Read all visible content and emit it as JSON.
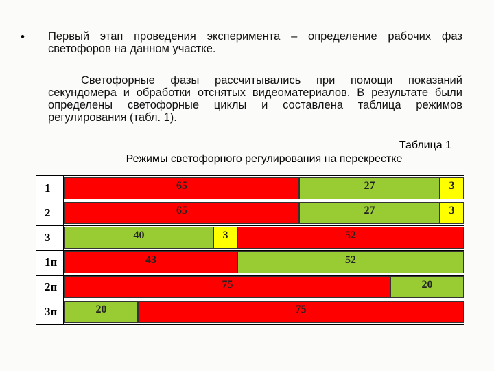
{
  "bullet": {
    "marker": "•",
    "text": "Первый этап проведения эксперимента – определение рабочих фаз светофоров на данном участке."
  },
  "paragraph": "Светофорные фазы рассчитывались при помощи показаний секундомера и обработки отснятых видеоматериалов. В результате были определены светофорные циклы и составлена таблица режимов регулирования (табл. 1).",
  "table": {
    "number": "Таблица 1",
    "title": "Режимы светофорного регулирования на перекрестке",
    "rows": [
      {
        "label": "1",
        "segments": [
          65,
          27,
          3
        ]
      },
      {
        "label": "2",
        "segments": [
          65,
          27,
          3
        ]
      },
      {
        "label": "3",
        "segments": [
          40,
          3,
          52
        ]
      },
      {
        "label": "1п",
        "segments": [
          43,
          52
        ]
      },
      {
        "label": "2п",
        "segments": [
          75,
          20
        ]
      },
      {
        "label": "3п",
        "segments": [
          20,
          75
        ]
      }
    ]
  }
}
